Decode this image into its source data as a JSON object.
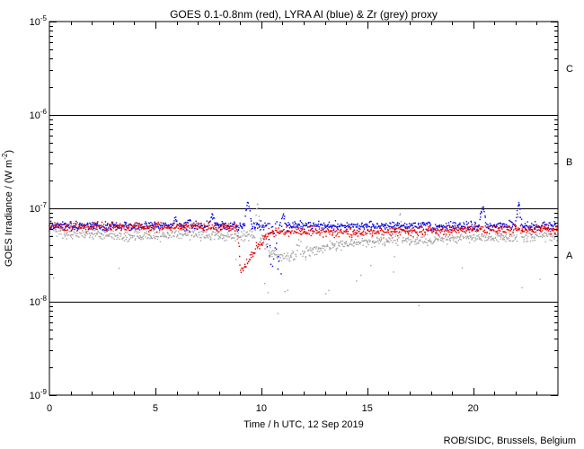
{
  "page": {
    "background": "#ffffff",
    "text_color": "#000000"
  },
  "chart_data": {
    "type": "scatter",
    "title": "GOES 0.1-0.8nm (red), LYRA Al (blue) & Zr (grey) proxy",
    "xlabel": "Time / h UTC, 12 Sep 2019",
    "ylabel": {
      "pre": "GOES Irradiance / (W m",
      "sup": "-2",
      "post": ")"
    },
    "attribution": "ROB/SIDC, Brussels, Belgium",
    "axes": {
      "x": {
        "min": 0,
        "max": 24,
        "unit": "h",
        "minor_step": 1,
        "major_step": 5,
        "tick_labels": [
          "0",
          "5",
          "10",
          "15",
          "20"
        ],
        "tick_values": [
          0,
          5,
          10,
          15,
          20
        ]
      },
      "y": {
        "scale": "log",
        "min_exp": -9,
        "max_exp": -5,
        "tick_labels": [
          {
            "base": "10",
            "sup": "-5"
          },
          {
            "base": "10",
            "sup": "-6"
          },
          {
            "base": "10",
            "sup": "-7"
          },
          {
            "base": "10",
            "sup": "-8"
          },
          {
            "base": "10",
            "sup": "-9"
          }
        ]
      }
    },
    "grid": {
      "hlines_values": [
        1e-06,
        1e-07,
        1e-08
      ]
    },
    "flare_classes": [
      {
        "label": "C",
        "value": 3.16e-06
      },
      {
        "label": "B",
        "value": 3.16e-07
      },
      {
        "label": "A",
        "value": 3.16e-08
      }
    ],
    "series": [
      {
        "name": "LYRA Zr proxy (grey)",
        "color": "#a3a3a3",
        "noise_dex": 0.028,
        "anchors": [
          [
            0,
            5.7e-08
          ],
          [
            0.7,
            5.4e-08
          ],
          [
            2,
            5.3e-08
          ],
          [
            3.5,
            5e-08
          ],
          [
            5,
            5.1e-08
          ],
          [
            6.5,
            5.3e-08
          ],
          [
            8,
            5.1e-08
          ],
          [
            9.5,
            5.2e-08
          ],
          [
            10.1,
            4.8e-08
          ],
          [
            10.35,
            3.5e-08
          ],
          [
            10.9,
            3e-08
          ],
          [
            11.6,
            3e-08
          ],
          [
            12.3,
            3.5e-08
          ],
          [
            13.2,
            3.9e-08
          ],
          [
            14.5,
            4.3e-08
          ],
          [
            16,
            4.6e-08
          ],
          [
            17.5,
            4.6e-08
          ],
          [
            19,
            4.8e-08
          ],
          [
            20.5,
            5e-08
          ],
          [
            22,
            4.8e-08
          ],
          [
            23,
            5e-08
          ],
          [
            24,
            5.2e-08
          ]
        ],
        "spikes": [
          {
            "t": 9.83,
            "peak": 1.25e-07,
            "w": 0.12
          },
          {
            "t": 16.55,
            "peak": 9.3e-08,
            "w": 0.07
          },
          {
            "t": 22.17,
            "peak": 1.06e-07,
            "w": 0.1
          }
        ],
        "scatter_segments": [
          {
            "t0": 11.68,
            "t1": 11.92,
            "frac": 0.75,
            "dex": [
              0.03,
              0.25
            ]
          },
          {
            "t0": 10.0,
            "t1": 16.5,
            "frac": 0.035,
            "dex": [
              -0.55,
              -0.12
            ]
          },
          {
            "t0": 0,
            "t1": 24,
            "frac": 0.01,
            "dex": [
              -0.68,
              -0.2
            ]
          }
        ]
      },
      {
        "name": "LYRA Al proxy (blue)",
        "color": "#0000dd",
        "noise_dex": 0.022,
        "anchors": [
          [
            0,
            6.5e-08
          ],
          [
            3,
            6.5e-08
          ],
          [
            6,
            6.5e-08
          ],
          [
            9,
            6.55e-08
          ],
          [
            12,
            6.6e-08
          ],
          [
            14,
            6.4e-08
          ],
          [
            16,
            6.5e-08
          ],
          [
            18,
            6.4e-08
          ],
          [
            20,
            6.5e-08
          ],
          [
            22,
            6.5e-08
          ],
          [
            24,
            6.4e-08
          ]
        ],
        "spikes": [
          {
            "t": 5.95,
            "peak": 7.9e-08,
            "w": 0.13
          },
          {
            "t": 6.6,
            "peak": 7.6e-08,
            "w": 0.1
          },
          {
            "t": 7.68,
            "peak": 8.7e-08,
            "w": 0.14
          },
          {
            "t": 9.37,
            "peak": 1.17e-07,
            "w": 0.16
          },
          {
            "t": 11.05,
            "peak": 9e-08,
            "w": 0.1
          },
          {
            "t": 20.45,
            "peak": 1.06e-07,
            "w": 0.18
          },
          {
            "t": 22.15,
            "peak": 1.16e-07,
            "w": 0.14
          }
        ],
        "scatter_segments": [
          {
            "t0": 10.28,
            "t1": 10.95,
            "frac": 0.6,
            "dex": [
              -0.5,
              -0.04
            ]
          }
        ]
      },
      {
        "name": "GOES 0.1-0.8nm (red)",
        "color": "#e00000",
        "noise_dex": 0.022,
        "anchors": [
          [
            0,
            6.4e-08
          ],
          [
            2,
            6.3e-08
          ],
          [
            5,
            6.35e-08
          ],
          [
            8.85,
            6.3e-08
          ],
          [
            8.95,
            4e-08
          ],
          [
            9.03,
            2.15e-08
          ],
          [
            9.25,
            2.5e-08
          ],
          [
            9.7,
            3.6e-08
          ],
          [
            10.4,
            5.5e-08
          ],
          [
            12,
            5.6e-08
          ],
          [
            14,
            5.5e-08
          ],
          [
            16,
            5.6e-08
          ],
          [
            18,
            5.8e-08
          ],
          [
            20,
            6e-08
          ],
          [
            22,
            5.9e-08
          ],
          [
            24,
            6e-08
          ]
        ],
        "spikes": [],
        "scatter_segments": []
      }
    ],
    "render": {
      "points_per_series": 950,
      "seed": 20190912,
      "dot_size": 1.4
    }
  }
}
